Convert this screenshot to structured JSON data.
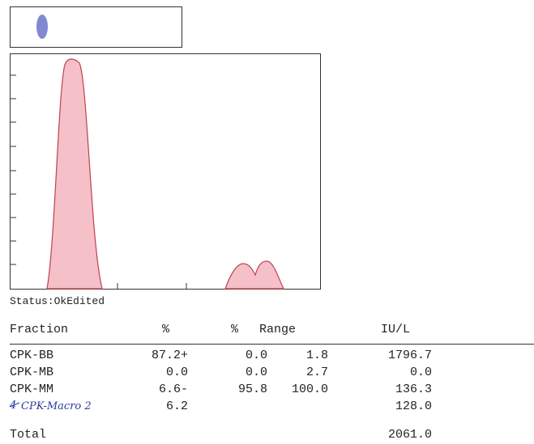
{
  "status": "Status:OkEdited",
  "table": {
    "header": [
      "Fraction",
      "%",
      "%",
      "Range",
      "IU/L"
    ],
    "rows": [
      [
        "CPK-BB",
        "87.2+",
        "0.0",
        "1.8",
        "1796.7"
      ],
      [
        "CPK-MB",
        "0.0",
        "0.0",
        "2.7",
        "0.0"
      ],
      [
        "CPK-MM",
        "6.6-",
        "95.8",
        "100.0",
        "136.3"
      ],
      [
        "CPK-Macro 2",
        "6.2",
        "",
        "",
        "128.0"
      ]
    ],
    "struck_mark": "4",
    "total": {
      "label": "Total",
      "value": "2061.0"
    }
  }
}
